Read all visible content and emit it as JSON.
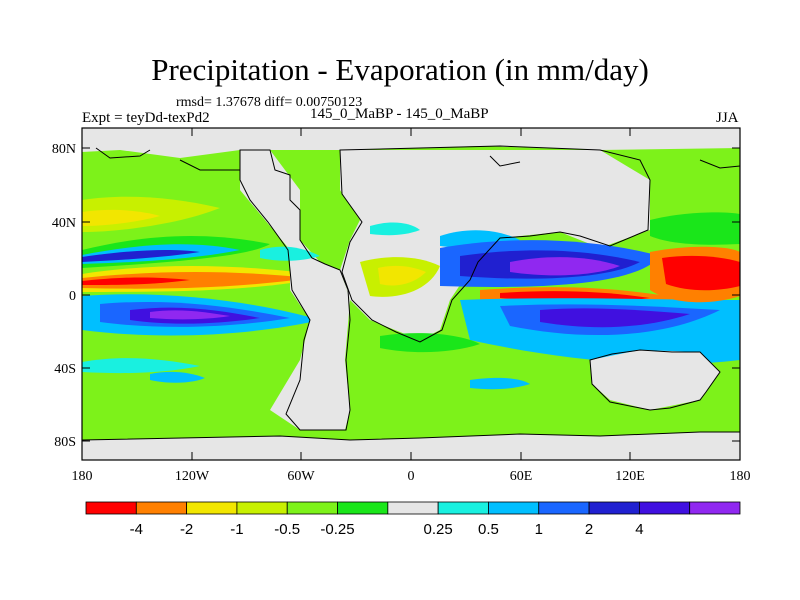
{
  "title": "Precipitation - Evaporation (in mm/day)",
  "stats": "rmsd= 1.37678 diff= 0.00750123",
  "left_label": "Expt = teyDd-texPd2",
  "center_label": "145_0_MaBP - 145_0_MaBP",
  "right_label": "JJA",
  "lat_ticks": [
    "80N",
    "40N",
    "0",
    "40S",
    "80S"
  ],
  "lon_ticks": [
    "180",
    "120W",
    "60W",
    "0",
    "60E",
    "120E",
    "180"
  ],
  "colors": {
    "land_mask": "#e6e6e6",
    "ocean_field": "#7df21a",
    "frame": "#000000"
  },
  "colorbar": {
    "boxes": [
      {
        "color": "#ff0000"
      },
      {
        "color": "#ff8000"
      },
      {
        "color": "#f2e600"
      },
      {
        "color": "#c8f000"
      },
      {
        "color": "#7df21a"
      },
      {
        "color": "#1ae61a"
      },
      {
        "color": "#e6e6e6"
      },
      {
        "color": "#19f0e0"
      },
      {
        "color": "#00bfff"
      },
      {
        "color": "#1a66ff"
      },
      {
        "color": "#2020d0"
      },
      {
        "color": "#4010e0"
      },
      {
        "color": "#9028f0"
      }
    ],
    "labels": [
      {
        "text": "-4",
        "after_box": 1
      },
      {
        "text": "-2",
        "after_box": 2
      },
      {
        "text": "-1",
        "after_box": 3
      },
      {
        "text": "-0.5",
        "after_box": 4
      },
      {
        "text": "-0.25",
        "after_box": 5
      },
      {
        "text": "0.25",
        "after_box": 7
      },
      {
        "text": "0.5",
        "after_box": 8
      },
      {
        "text": "1",
        "after_box": 9
      },
      {
        "text": "2",
        "after_box": 10
      },
      {
        "text": "4",
        "after_box": 11
      }
    ]
  }
}
